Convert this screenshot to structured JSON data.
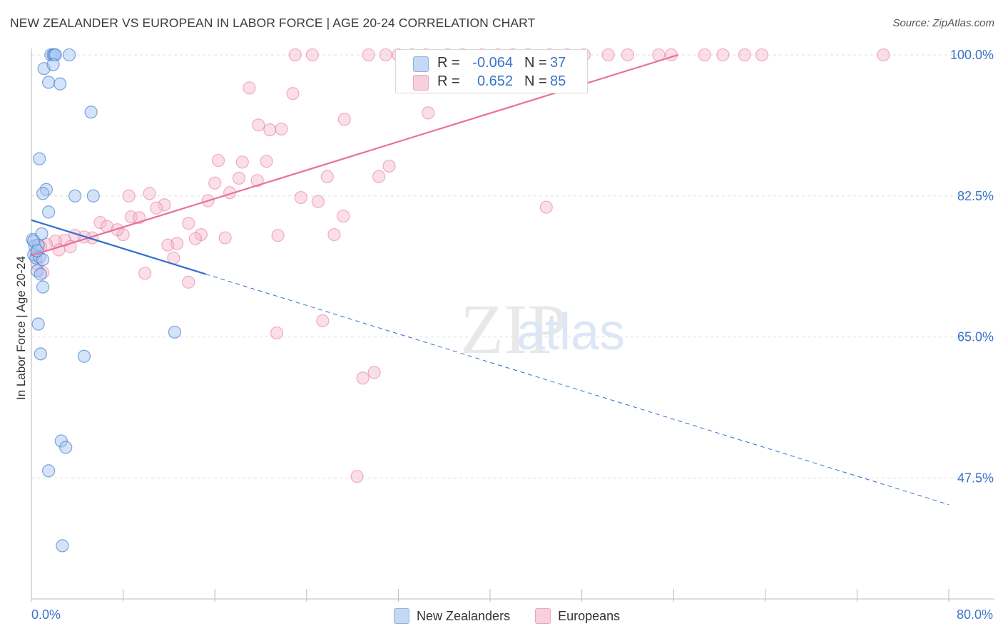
{
  "header": {
    "title": "NEW ZEALANDER VS EUROPEAN IN LABOR FORCE | AGE 20-24 CORRELATION CHART",
    "source": "Source: ZipAtlas.com"
  },
  "watermark": "ZIPatlas",
  "colors": {
    "blue": "#3a74c7",
    "blue_fill": "#aac8f0",
    "blue_line": "#2f6fcf",
    "pink_fill": "#f5b8cb",
    "pink_line": "#e8719a",
    "grid": "#dedede"
  },
  "legend_top": {
    "rows": [
      {
        "r_label": "R =",
        "r_value": "-0.064",
        "n_label": "N =",
        "n_value": "37"
      },
      {
        "r_label": "R =",
        "r_value": "0.652",
        "n_label": "N =",
        "n_value": "85"
      }
    ]
  },
  "legend_bottom": [
    "New Zealanders",
    "Europeans"
  ],
  "chart_data": {
    "type": "scatter",
    "title": "NEW ZEALANDER VS EUROPEAN IN LABOR FORCE | AGE 20-24 CORRELATION CHART",
    "xlabel": "",
    "ylabel": "In Labor Force | Age 20-24",
    "xlim": [
      0,
      80
    ],
    "ylim": [
      32.5,
      101.5
    ],
    "x_tick_labels": [
      "0.0%",
      "80.0%"
    ],
    "y_ticks": [
      47.5,
      65.0,
      82.5,
      100.0
    ],
    "y_tick_labels": [
      "47.5%",
      "65.0%",
      "82.5%",
      "100.0%"
    ],
    "grid": true,
    "legend_position": "bottom",
    "series": [
      {
        "name": "New Zealanders",
        "R": -0.064,
        "N": 37,
        "trend": {
          "x0": 0,
          "y0": 79.5,
          "x_solid_end": 15.2,
          "y_solid_end": 72.8,
          "x1": 80,
          "y1": 44.2
        },
        "points": [
          [
            1.7,
            100
          ],
          [
            1.9,
            100
          ],
          [
            2.0,
            100
          ],
          [
            2.1,
            100
          ],
          [
            3.3,
            100
          ],
          [
            1.1,
            98.3
          ],
          [
            1.5,
            96.6
          ],
          [
            2.5,
            96.4
          ],
          [
            1.9,
            98.8
          ],
          [
            5.2,
            92.9
          ],
          [
            0.7,
            87.1
          ],
          [
            1.3,
            83.3
          ],
          [
            1.0,
            82.8
          ],
          [
            3.8,
            82.5
          ],
          [
            5.4,
            82.5
          ],
          [
            1.5,
            80.5
          ],
          [
            0.1,
            77.1
          ],
          [
            0.3,
            76.3
          ],
          [
            0.6,
            76.4
          ],
          [
            0.9,
            77.8
          ],
          [
            0.2,
            75.2
          ],
          [
            0.4,
            74.8
          ],
          [
            0.7,
            74.9
          ],
          [
            1.0,
            74.6
          ],
          [
            0.5,
            73.2
          ],
          [
            0.8,
            72.8
          ],
          [
            1.0,
            71.2
          ],
          [
            0.6,
            66.6
          ],
          [
            12.5,
            65.6
          ],
          [
            0.8,
            62.9
          ],
          [
            4.6,
            62.6
          ],
          [
            2.6,
            52.1
          ],
          [
            3.0,
            51.3
          ],
          [
            1.5,
            48.4
          ],
          [
            2.7,
            39.1
          ],
          [
            0.2,
            76.9
          ],
          [
            0.5,
            75.7
          ]
        ]
      },
      {
        "name": "Europeans",
        "R": 0.652,
        "N": 85,
        "trend": {
          "x0": 0,
          "y0": 75.1,
          "x1": 56.4,
          "y1": 100
        },
        "points": [
          [
            23.0,
            100
          ],
          [
            24.5,
            100
          ],
          [
            29.4,
            100
          ],
          [
            30.9,
            100
          ],
          [
            32.0,
            100
          ],
          [
            33.2,
            100
          ],
          [
            34.4,
            100
          ],
          [
            36.3,
            100
          ],
          [
            37.6,
            100
          ],
          [
            39.3,
            100
          ],
          [
            40.7,
            100
          ],
          [
            42.0,
            100
          ],
          [
            43.3,
            100
          ],
          [
            45.2,
            100
          ],
          [
            46.7,
            100
          ],
          [
            48.2,
            100
          ],
          [
            50.3,
            100
          ],
          [
            52.0,
            100
          ],
          [
            54.7,
            100
          ],
          [
            55.8,
            100
          ],
          [
            58.7,
            100
          ],
          [
            60.3,
            100
          ],
          [
            62.2,
            100
          ],
          [
            63.7,
            100
          ],
          [
            74.3,
            100
          ],
          [
            19.0,
            95.9
          ],
          [
            22.8,
            95.2
          ],
          [
            34.6,
            92.8
          ],
          [
            27.3,
            92.0
          ],
          [
            19.8,
            91.3
          ],
          [
            20.8,
            90.7
          ],
          [
            21.8,
            90.8
          ],
          [
            16.3,
            86.9
          ],
          [
            18.4,
            86.7
          ],
          [
            20.5,
            86.8
          ],
          [
            31.2,
            86.2
          ],
          [
            16.0,
            84.1
          ],
          [
            18.1,
            84.7
          ],
          [
            19.7,
            84.4
          ],
          [
            25.8,
            84.9
          ],
          [
            30.3,
            84.9
          ],
          [
            17.3,
            82.9
          ],
          [
            10.3,
            82.8
          ],
          [
            8.5,
            82.5
          ],
          [
            23.5,
            82.3
          ],
          [
            25.0,
            81.8
          ],
          [
            15.4,
            81.9
          ],
          [
            11.6,
            81.4
          ],
          [
            10.9,
            81.0
          ],
          [
            27.2,
            80.0
          ],
          [
            8.7,
            79.9
          ],
          [
            9.4,
            79.8
          ],
          [
            44.9,
            81.1
          ],
          [
            6.0,
            79.2
          ],
          [
            6.6,
            78.7
          ],
          [
            13.7,
            79.1
          ],
          [
            8.0,
            77.7
          ],
          [
            7.5,
            78.3
          ],
          [
            5.3,
            77.3
          ],
          [
            14.8,
            77.7
          ],
          [
            16.9,
            77.3
          ],
          [
            21.5,
            77.6
          ],
          [
            26.4,
            77.7
          ],
          [
            14.3,
            77.2
          ],
          [
            11.9,
            76.4
          ],
          [
            12.7,
            76.6
          ],
          [
            3.8,
            77.6
          ],
          [
            4.6,
            77.4
          ],
          [
            2.9,
            77.0
          ],
          [
            2.1,
            76.9
          ],
          [
            1.3,
            76.5
          ],
          [
            0.8,
            76.2
          ],
          [
            0.4,
            75.4
          ],
          [
            12.4,
            74.8
          ],
          [
            9.9,
            72.9
          ],
          [
            13.7,
            71.8
          ],
          [
            25.4,
            67.0
          ],
          [
            21.4,
            65.5
          ],
          [
            29.9,
            60.6
          ],
          [
            28.9,
            59.9
          ],
          [
            28.4,
            47.7
          ],
          [
            1.0,
            73.0
          ],
          [
            0.5,
            74.0
          ],
          [
            2.4,
            75.8
          ],
          [
            3.4,
            76.2
          ]
        ]
      }
    ]
  }
}
